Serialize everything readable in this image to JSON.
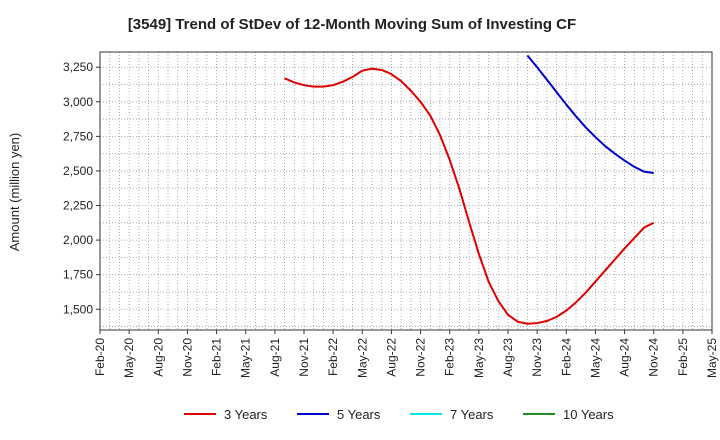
{
  "chart_data": {
    "type": "line",
    "title": "[3549]  Trend of StDev of 12-Month Moving Sum of Investing CF",
    "ylabel": "Amount (million yen)",
    "xlabel": "",
    "x_ticks": [
      "Feb-20",
      "May-20",
      "Aug-20",
      "Nov-20",
      "Feb-21",
      "May-21",
      "Aug-21",
      "Nov-21",
      "Feb-22",
      "May-22",
      "Aug-22",
      "Nov-22",
      "Feb-23",
      "May-23",
      "Aug-23",
      "Nov-23",
      "Feb-24",
      "May-24",
      "Aug-24",
      "Nov-24",
      "Feb-25",
      "May-25"
    ],
    "y_ticks": [
      1500,
      1750,
      2000,
      2250,
      2500,
      2750,
      3000,
      3250
    ],
    "y_tick_labels": [
      "1,500",
      "1,750",
      "2,000",
      "2,250",
      "2,500",
      "2,750",
      "3,000",
      "3,250"
    ],
    "ylim": [
      1350,
      3360
    ],
    "grid": true,
    "legend_position": "bottom",
    "series": [
      {
        "name": "3 Years",
        "color": "#dd0000",
        "points": [
          [
            "Sep-21",
            3170
          ],
          [
            "Oct-21",
            3140
          ],
          [
            "Nov-21",
            3120
          ],
          [
            "Dec-21",
            3110
          ],
          [
            "Jan-22",
            3110
          ],
          [
            "Feb-22",
            3120
          ],
          [
            "Mar-22",
            3145
          ],
          [
            "Apr-22",
            3180
          ],
          [
            "May-22",
            3225
          ],
          [
            "Jun-22",
            3240
          ],
          [
            "Jul-22",
            3230
          ],
          [
            "Aug-22",
            3200
          ],
          [
            "Sep-22",
            3150
          ],
          [
            "Oct-22",
            3080
          ],
          [
            "Nov-22",
            3000
          ],
          [
            "Dec-22",
            2900
          ],
          [
            "Jan-23",
            2760
          ],
          [
            "Feb-23",
            2580
          ],
          [
            "Mar-23",
            2370
          ],
          [
            "Apr-23",
            2130
          ],
          [
            "May-23",
            1900
          ],
          [
            "Jun-23",
            1700
          ],
          [
            "Jul-23",
            1560
          ],
          [
            "Aug-23",
            1460
          ],
          [
            "Sep-23",
            1410
          ],
          [
            "Oct-23",
            1395
          ],
          [
            "Nov-23",
            1400
          ],
          [
            "Dec-23",
            1415
          ],
          [
            "Jan-24",
            1445
          ],
          [
            "Feb-24",
            1490
          ],
          [
            "Mar-24",
            1550
          ],
          [
            "Apr-24",
            1620
          ],
          [
            "May-24",
            1700
          ],
          [
            "Jun-24",
            1780
          ],
          [
            "Jul-24",
            1860
          ],
          [
            "Aug-24",
            1940
          ],
          [
            "Sep-24",
            2015
          ],
          [
            "Oct-24",
            2090
          ],
          [
            "Nov-24",
            2125
          ]
        ]
      },
      {
        "name": "5 Years",
        "color": "#0000cc",
        "points": [
          [
            "Oct-23",
            3335
          ],
          [
            "Nov-23",
            3250
          ],
          [
            "Dec-23",
            3160
          ],
          [
            "Jan-24",
            3070
          ],
          [
            "Feb-24",
            2980
          ],
          [
            "Mar-24",
            2895
          ],
          [
            "Apr-24",
            2815
          ],
          [
            "May-24",
            2745
          ],
          [
            "Jun-24",
            2680
          ],
          [
            "Jul-24",
            2625
          ],
          [
            "Aug-24",
            2575
          ],
          [
            "Sep-24",
            2530
          ],
          [
            "Oct-24",
            2495
          ],
          [
            "Nov-24",
            2485
          ]
        ]
      },
      {
        "name": "7 Years",
        "color": "#00e5e5",
        "points": []
      },
      {
        "name": "10 Years",
        "color": "#228b22",
        "points": []
      }
    ]
  }
}
